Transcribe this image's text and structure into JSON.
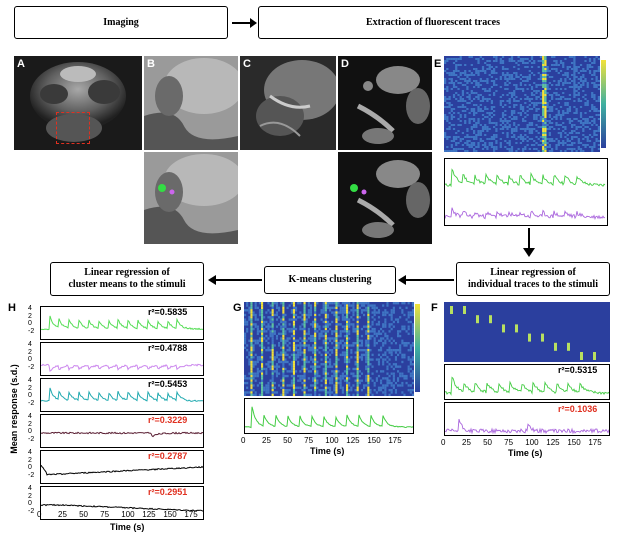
{
  "flow": {
    "imaging": "Imaging",
    "extraction": "Extraction of fluorescent traces",
    "linreg_individual_1": "Linear regression of",
    "linreg_individual_2": "individual traces to the stimuli",
    "kmeans": "K-means clustering",
    "linreg_cluster_1": "Linear regression of",
    "linreg_cluster_2": "cluster means to the stimuli"
  },
  "panel_labels": {
    "A": "A",
    "B": "B",
    "C": "C",
    "D": "D",
    "E": "E",
    "F": "F",
    "G": "G",
    "H": "H"
  },
  "panel_h": {
    "ylabel": "Mean response (s.d.)",
    "xlabel": "Time (s)",
    "xticks": [
      "0",
      "25",
      "50",
      "75",
      "100",
      "125",
      "150",
      "175"
    ],
    "rows": [
      {
        "r2": "r²=0.5835",
        "r2_color": "#000000",
        "trace_color": "#55dd55",
        "ticks": [
          "4",
          "2",
          "0",
          "-2"
        ]
      },
      {
        "r2": "r²=0.4788",
        "r2_color": "#000000",
        "trace_color": "#cc88ee",
        "ticks": [
          "4",
          "2",
          "0",
          "-2"
        ]
      },
      {
        "r2": "r²=0.5453",
        "r2_color": "#000000",
        "trace_color": "#22aab0",
        "ticks": [
          "4",
          "2",
          "0",
          "-2"
        ]
      },
      {
        "r2": "r²=0.3229",
        "r2_color": "#e03020",
        "trace_color": "#5a1f33",
        "ticks": [
          "4",
          "2",
          "0",
          "-2"
        ]
      },
      {
        "r2": "r²=0.2787",
        "r2_color": "#e03020",
        "trace_color": "#000000",
        "ticks": [
          "4",
          "2",
          "0",
          "-2"
        ]
      },
      {
        "r2": "r²=0.2951",
        "r2_color": "#e03020",
        "trace_color": "#000000",
        "ticks": [
          "4",
          "2",
          "0",
          "-2"
        ]
      }
    ]
  },
  "panel_g": {
    "xlabel": "Time (s)",
    "xticks": [
      "0",
      "25",
      "50",
      "75",
      "100",
      "125",
      "150",
      "175"
    ]
  },
  "panel_f": {
    "xlabel": "Time (s)",
    "xticks": [
      "0",
      "25",
      "50",
      "75",
      "100",
      "125",
      "150",
      "175"
    ],
    "r2_green": "r²=0.5315",
    "r2_purple": "r²=0.1036",
    "r2_purple_color": "#e03020"
  },
  "colors": {
    "heatmap_bg": "#2b3f9e",
    "heatmap_high": "#f2e23a",
    "green": "#44cc44",
    "purple": "#aa66dd",
    "roi_box": "#e03020"
  }
}
